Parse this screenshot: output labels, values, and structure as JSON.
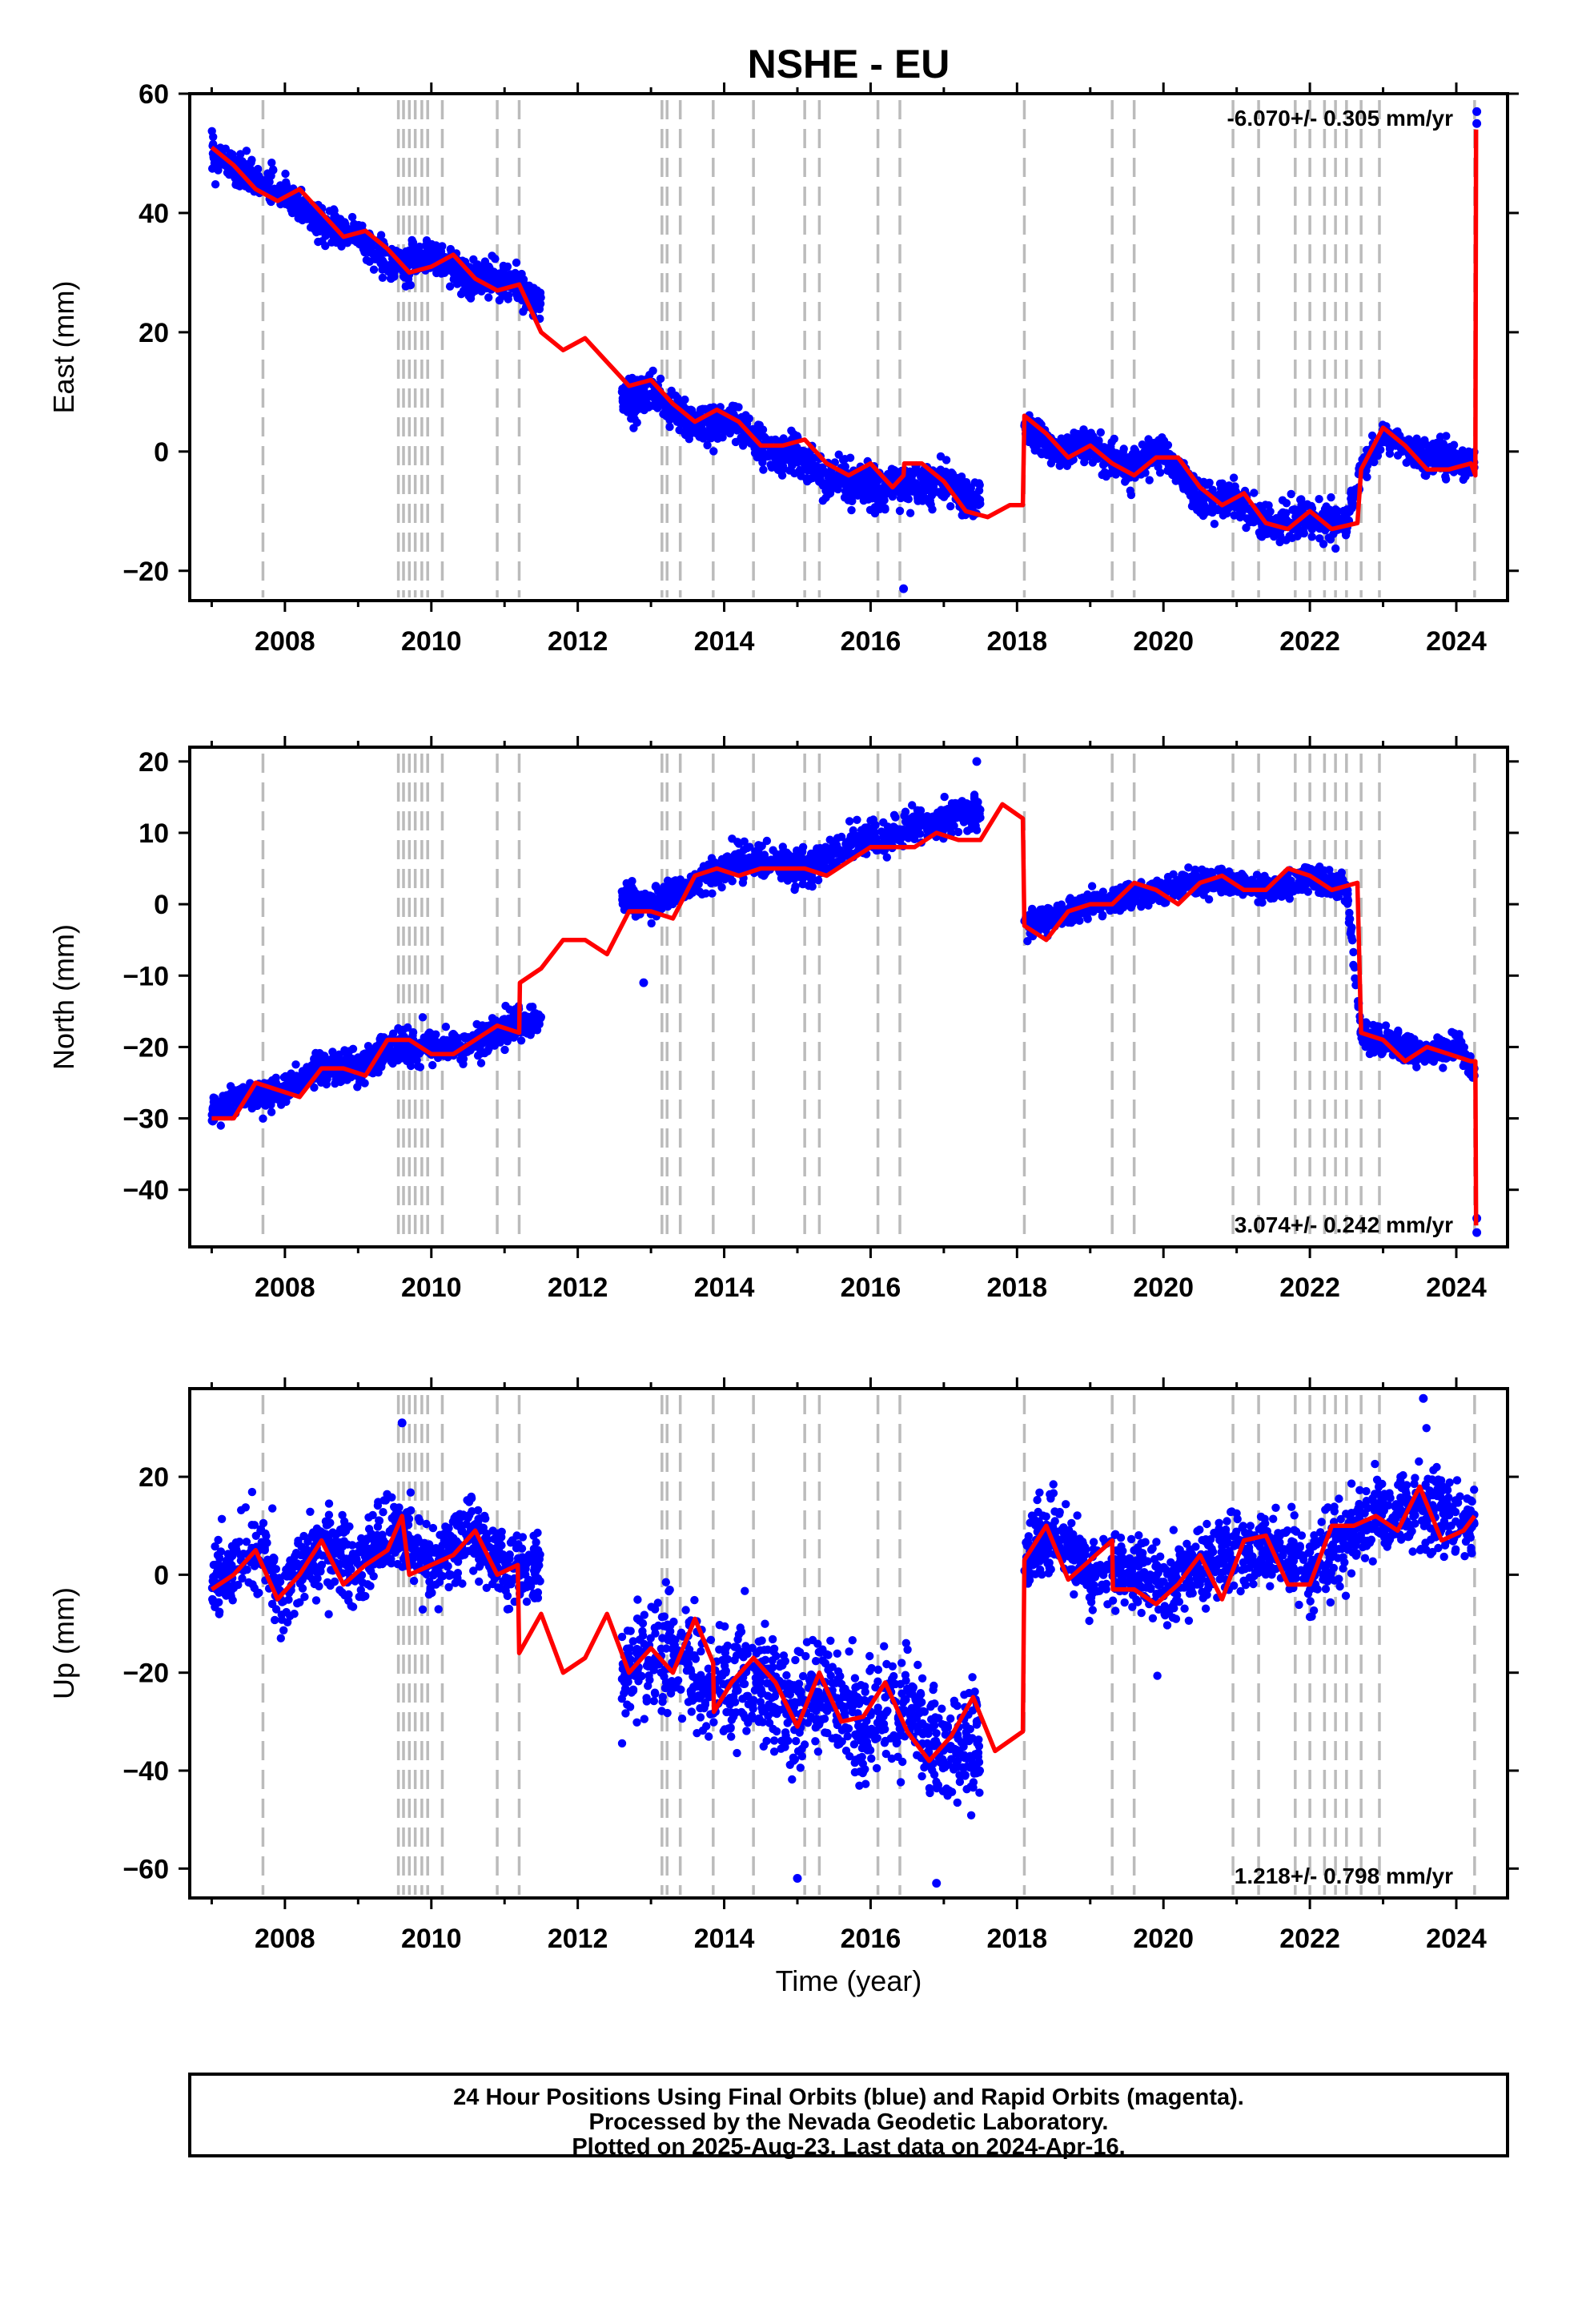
{
  "title": "NSHE - EU",
  "footer": {
    "lines": [
      "24 Hour Positions Using Final Orbits (blue) and Rapid Orbits (magenta).",
      "Processed by the Nevada Geodetic Laboratory.",
      "Plotted on 2025-Aug-23. Last data on 2024-Apr-16."
    ]
  },
  "colors": {
    "data_points": "#0000ff",
    "model_line": "#ff0000",
    "event_lines": "#bbbbbb",
    "frame": "#000000"
  },
  "chart_data": [
    {
      "type": "scatter",
      "xlabel": "",
      "ylabel": "East (mm)",
      "xlim": [
        2006.7,
        2024.7
      ],
      "ylim": [
        -25,
        60
      ],
      "xticks": [
        2008,
        2010,
        2012,
        2014,
        2016,
        2018,
        2020,
        2022,
        2024
      ],
      "yticks": [
        -20,
        0,
        20,
        40,
        60
      ],
      "rate_text": "-6.070+/- 0.305 mm/yr",
      "rate_position": "top-right",
      "event_lines": [
        2007.7,
        2009.55,
        2009.62,
        2009.7,
        2009.78,
        2009.87,
        2009.95,
        2010.15,
        2010.9,
        2011.2,
        2013.15,
        2013.22,
        2013.4,
        2013.85,
        2014.4,
        2015.1,
        2015.3,
        2016.1,
        2016.4,
        2018.1,
        2019.3,
        2019.6,
        2020.95,
        2021.3,
        2021.8,
        2022.0,
        2022.2,
        2022.35,
        2022.5,
        2022.7,
        2022.95,
        2024.25
      ],
      "data_segments": [
        {
          "x": [
            2007.0,
            2007.5,
            2008.0,
            2008.5,
            2009.0,
            2009.5,
            2010.0,
            2010.5,
            2011.0,
            2011.5
          ],
          "y": [
            50,
            46,
            43,
            38,
            36,
            31,
            33,
            29,
            29,
            25
          ],
          "spread": 2.5
        },
        {
          "x": [
            2012.6,
            2013.0,
            2013.4,
            2013.8,
            2014.2,
            2014.6,
            2015.0,
            2015.4,
            2015.8,
            2016.2,
            2016.6,
            2017.0,
            2017.5
          ],
          "y": [
            9,
            10,
            6,
            4,
            5,
            -1,
            0,
            -5,
            -5,
            -6,
            -6,
            -5,
            -9
          ],
          "spread": 3.0
        },
        {
          "x": [
            2018.1,
            2018.5,
            2019.0,
            2019.5,
            2020.0,
            2020.5,
            2021.0,
            2021.5,
            2022.0,
            2022.5,
            2022.7,
            2023.0,
            2023.5,
            2024.0,
            2024.25
          ],
          "y": [
            5,
            0,
            1,
            -3,
            0,
            -8,
            -8,
            -13,
            -11,
            -12,
            -3,
            3,
            -1,
            -1,
            -3
          ],
          "spread": 2.5
        }
      ],
      "outliers": [
        {
          "x": 2016.45,
          "y": -23
        },
        {
          "x": 2024.28,
          "y": 57
        },
        {
          "x": 2024.28,
          "y": 55
        }
      ],
      "model_x": [
        2007.0,
        2007.3,
        2007.6,
        2007.9,
        2008.2,
        2008.5,
        2008.8,
        2009.1,
        2009.4,
        2009.7,
        2010.0,
        2010.3,
        2010.6,
        2010.9,
        2011.2,
        2011.5,
        2011.8,
        2012.1,
        2012.4,
        2012.7,
        2013.0,
        2013.3,
        2013.6,
        2013.9,
        2014.2,
        2014.5,
        2014.8,
        2015.1,
        2015.4,
        2015.7,
        2016.0,
        2016.3,
        2016.45,
        2016.46,
        2016.7,
        2017.0,
        2017.3,
        2017.6,
        2017.9,
        2018.08,
        2018.1,
        2018.4,
        2018.7,
        2019.0,
        2019.3,
        2019.6,
        2019.9,
        2020.2,
        2020.5,
        2020.8,
        2021.1,
        2021.4,
        2021.7,
        2022.0,
        2022.3,
        2022.65,
        2022.7,
        2023.0,
        2023.3,
        2023.6,
        2023.9,
        2024.2,
        2024.26,
        2024.27
      ],
      "model_y": [
        51,
        48,
        44,
        42,
        44,
        40,
        36,
        37,
        34,
        30,
        31,
        33,
        29,
        27,
        28,
        20,
        17,
        19,
        15,
        11,
        12,
        8,
        5,
        7,
        5,
        1,
        1,
        2,
        -2,
        -4,
        -2,
        -6,
        -4,
        -2,
        -2,
        -5,
        -10,
        -11,
        -9,
        -9,
        6,
        3,
        -1,
        1,
        -2,
        -4,
        -1,
        -1,
        -6,
        -9,
        -7,
        -12,
        -13,
        -10,
        -13,
        -12,
        -3,
        4,
        1,
        -3,
        -3,
        -2,
        -4,
        54
      ]
    },
    {
      "type": "scatter",
      "xlabel": "",
      "ylabel": "North (mm)",
      "xlim": [
        2006.7,
        2024.7
      ],
      "ylim": [
        -48,
        22
      ],
      "xticks": [
        2008,
        2010,
        2012,
        2014,
        2016,
        2018,
        2020,
        2022,
        2024
      ],
      "yticks": [
        -40,
        -30,
        -20,
        -10,
        0,
        10,
        20
      ],
      "rate_text": "3.074+/- 0.242 mm/yr",
      "rate_position": "bottom-right",
      "event_lines": [
        2007.7,
        2009.55,
        2009.62,
        2009.7,
        2009.78,
        2009.87,
        2009.95,
        2010.15,
        2010.9,
        2011.2,
        2013.15,
        2013.22,
        2013.4,
        2013.85,
        2014.4,
        2015.1,
        2015.3,
        2016.1,
        2016.4,
        2018.1,
        2019.3,
        2019.6,
        2020.95,
        2021.3,
        2021.8,
        2022.0,
        2022.2,
        2022.35,
        2022.5,
        2022.7,
        2022.95,
        2024.25
      ],
      "data_segments": [
        {
          "x": [
            2007.0,
            2007.5,
            2008.0,
            2008.5,
            2009.0,
            2009.5,
            2010.0,
            2010.5,
            2011.0,
            2011.5
          ],
          "y": [
            -29,
            -27,
            -26,
            -23,
            -23,
            -20,
            -20,
            -20,
            -17,
            -16
          ],
          "spread": 2.0
        },
        {
          "x": [
            2012.6,
            2013.0,
            2013.4,
            2013.8,
            2014.2,
            2014.6,
            2015.0,
            2015.4,
            2015.8,
            2016.2,
            2016.6,
            2017.0,
            2017.5
          ],
          "y": [
            1,
            0,
            2,
            4,
            6,
            6,
            5,
            6,
            9,
            9,
            11,
            12,
            13
          ],
          "spread": 2.0
        },
        {
          "x": [
            2018.1,
            2018.5,
            2019.0,
            2019.5,
            2020.0,
            2020.5,
            2021.0,
            2021.5,
            2022.0,
            2022.5,
            2022.7,
            2023.0,
            2023.5,
            2024.0,
            2024.25
          ],
          "y": [
            -3,
            -2,
            0,
            1,
            2,
            3,
            3,
            2,
            4,
            2,
            -18,
            -19,
            -21,
            -20,
            -23
          ],
          "spread": 1.6
        }
      ],
      "outliers": [
        {
          "x": 2012.9,
          "y": -11
        },
        {
          "x": 2017.45,
          "y": 20
        },
        {
          "x": 2024.28,
          "y": -44
        },
        {
          "x": 2024.28,
          "y": -46
        }
      ],
      "model_x": [
        2007.0,
        2007.3,
        2007.6,
        2007.9,
        2008.2,
        2008.5,
        2008.8,
        2009.1,
        2009.4,
        2009.7,
        2010.0,
        2010.3,
        2010.6,
        2010.9,
        2011.2,
        2011.21,
        2011.5,
        2011.8,
        2012.1,
        2012.4,
        2012.7,
        2013.0,
        2013.3,
        2013.6,
        2013.9,
        2014.2,
        2014.5,
        2014.8,
        2015.1,
        2015.4,
        2015.7,
        2016.0,
        2016.3,
        2016.6,
        2016.9,
        2017.2,
        2017.5,
        2017.8,
        2018.08,
        2018.1,
        2018.4,
        2018.7,
        2019.0,
        2019.3,
        2019.6,
        2019.9,
        2020.2,
        2020.5,
        2020.8,
        2021.1,
        2021.4,
        2021.7,
        2022.0,
        2022.3,
        2022.65,
        2022.7,
        2023.0,
        2023.3,
        2023.6,
        2023.9,
        2024.2,
        2024.26,
        2024.27
      ],
      "model_y": [
        -30,
        -30,
        -25,
        -26,
        -27,
        -23,
        -23,
        -24,
        -19,
        -19,
        -21,
        -21,
        -19,
        -17,
        -18,
        -11,
        -9,
        -5,
        -5,
        -7,
        -1,
        -1,
        -2,
        4,
        5,
        4,
        5,
        5,
        5,
        4,
        6,
        8,
        8,
        8,
        10,
        9,
        9,
        14,
        12,
        -3,
        -5,
        -1,
        0,
        0,
        3,
        2,
        0,
        3,
        4,
        2,
        2,
        5,
        4,
        2,
        3,
        -18,
        -19,
        -22,
        -20,
        -21,
        -22,
        -22,
        -45
      ]
    },
    {
      "type": "scatter",
      "xlabel": "Time (year)",
      "ylabel": "Up (mm)",
      "xlim": [
        2006.7,
        2024.7
      ],
      "ylim": [
        -66,
        38
      ],
      "xticks": [
        2008,
        2010,
        2012,
        2014,
        2016,
        2018,
        2020,
        2022,
        2024
      ],
      "yticks": [
        -60,
        -40,
        -20,
        0,
        20
      ],
      "rate_text": "1.218+/- 0.798 mm/yr",
      "rate_position": "bottom-right",
      "event_lines": [
        2007.7,
        2009.55,
        2009.62,
        2009.7,
        2009.78,
        2009.87,
        2009.95,
        2010.15,
        2010.9,
        2011.2,
        2013.15,
        2013.22,
        2013.4,
        2013.85,
        2014.4,
        2015.1,
        2015.3,
        2016.1,
        2016.4,
        2018.1,
        2019.3,
        2019.6,
        2020.95,
        2021.3,
        2021.8,
        2022.0,
        2022.2,
        2022.35,
        2022.5,
        2022.7,
        2022.95,
        2024.25
      ],
      "data_segments": [
        {
          "x": [
            2007.0,
            2007.5,
            2008.0,
            2008.5,
            2009.0,
            2009.5,
            2010.0,
            2010.5,
            2011.0,
            2011.5
          ],
          "y": [
            -2,
            5,
            -3,
            6,
            1,
            9,
            2,
            9,
            1,
            1
          ],
          "spread": 7.0
        },
        {
          "x": [
            2012.6,
            2013.0,
            2013.4,
            2013.8,
            2014.2,
            2014.6,
            2015.0,
            2015.4,
            2015.8,
            2016.2,
            2016.6,
            2017.0,
            2017.5
          ],
          "y": [
            -22,
            -18,
            -15,
            -24,
            -20,
            -24,
            -30,
            -23,
            -30,
            -29,
            -26,
            -36,
            -33
          ],
          "spread": 10.0
        },
        {
          "x": [
            2018.1,
            2018.5,
            2019.0,
            2019.5,
            2020.0,
            2020.5,
            2021.0,
            2021.5,
            2022.0,
            2022.5,
            2022.7,
            2023.0,
            2023.5,
            2024.0,
            2024.25
          ],
          "y": [
            3,
            9,
            0,
            2,
            -3,
            2,
            6,
            5,
            2,
            7,
            12,
            11,
            14,
            11,
            10
          ],
          "spread": 7.0
        }
      ],
      "outliers": [
        {
          "x": 2009.6,
          "y": 31
        },
        {
          "x": 2015.0,
          "y": -62
        },
        {
          "x": 2016.9,
          "y": -63
        },
        {
          "x": 2023.55,
          "y": 36
        }
      ],
      "model_x": [
        2007.0,
        2007.3,
        2007.6,
        2007.9,
        2008.2,
        2008.5,
        2008.8,
        2009.1,
        2009.4,
        2009.6,
        2009.7,
        2010.0,
        2010.3,
        2010.6,
        2010.9,
        2011.18,
        2011.2,
        2011.5,
        2011.8,
        2012.1,
        2012.4,
        2012.7,
        2013.0,
        2013.3,
        2013.6,
        2013.85,
        2013.86,
        2014.1,
        2014.4,
        2014.7,
        2015.0,
        2015.3,
        2015.6,
        2015.9,
        2016.2,
        2016.5,
        2016.8,
        2017.1,
        2017.4,
        2017.7,
        2018.08,
        2018.1,
        2018.4,
        2018.7,
        2019.0,
        2019.3,
        2019.31,
        2019.6,
        2019.9,
        2020.2,
        2020.5,
        2020.8,
        2021.1,
        2021.4,
        2021.7,
        2022.0,
        2022.3,
        2022.6,
        2022.9,
        2023.2,
        2023.5,
        2023.8,
        2024.1,
        2024.25
      ],
      "model_y": [
        -3,
        0,
        5,
        -5,
        0,
        7,
        -2,
        2,
        5,
        12,
        0,
        2,
        4,
        9,
        0,
        2,
        -16,
        -8,
        -20,
        -17,
        -8,
        -20,
        -15,
        -20,
        -9,
        -18,
        -28,
        -22,
        -17,
        -22,
        -31,
        -20,
        -30,
        -29,
        -22,
        -32,
        -38,
        -33,
        -25,
        -36,
        -32,
        3,
        10,
        -1,
        3,
        7,
        -3,
        -3,
        -6,
        -2,
        4,
        -5,
        7,
        8,
        -2,
        -2,
        10,
        10,
        12,
        9,
        18,
        7,
        9,
        12
      ]
    }
  ]
}
